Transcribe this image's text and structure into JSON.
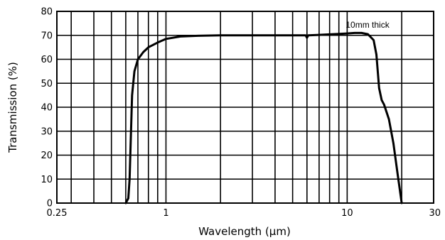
{
  "chart_data": {
    "type": "line",
    "xlabel": "Wavelength (µm)",
    "ylabel": "Transmission (%)",
    "x_scale": "log",
    "xlim": [
      0.25,
      30
    ],
    "ylim": [
      0,
      80
    ],
    "x_tick_labels": [
      {
        "value": 0.25,
        "label": "0.25"
      },
      {
        "value": 1,
        "label": "1"
      },
      {
        "value": 10,
        "label": "10"
      },
      {
        "value": 30,
        "label": "30"
      }
    ],
    "y_ticks": [
      0,
      10,
      20,
      30,
      40,
      50,
      60,
      70,
      80
    ],
    "x_gridlines": [
      0.3,
      0.4,
      0.5,
      0.6,
      0.7,
      0.8,
      0.9,
      1,
      2,
      3,
      4,
      5,
      6,
      7,
      8,
      9,
      10,
      20
    ],
    "grid": true,
    "annotations": [
      {
        "text": "10mm thick",
        "x": 10,
        "y": 75
      }
    ],
    "series": [
      {
        "color": "#000000",
        "x": [
          0.6,
          0.62,
          0.63,
          0.65,
          0.67,
          0.7,
          0.75,
          0.8,
          0.9,
          1.0,
          1.2,
          1.5,
          2,
          3,
          4,
          5,
          5.9,
          6.0,
          6.1,
          7,
          8,
          9,
          10,
          11,
          12,
          13,
          14,
          14.5,
          15,
          15.5,
          16,
          17,
          18,
          19,
          20
        ],
        "y": [
          0,
          2,
          10,
          45,
          55,
          60,
          63,
          65,
          67,
          68.5,
          69.5,
          69.8,
          70,
          70,
          70,
          70,
          70,
          69,
          70,
          70.2,
          70.4,
          70.6,
          70.8,
          71,
          71,
          70.5,
          68,
          62,
          48,
          43,
          41,
          35,
          25,
          12,
          0
        ]
      }
    ]
  }
}
